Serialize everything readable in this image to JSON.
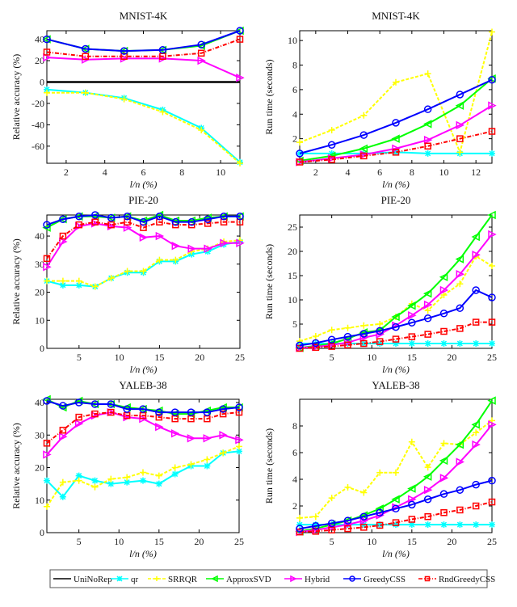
{
  "legend": {
    "entries": [
      "UniNoRep",
      "qr",
      "SRRQR",
      "ApproxSVD",
      "Hybrid",
      "GreedyCSS",
      "RndGreedyCSS"
    ],
    "placement": "bottom"
  },
  "styles": {
    "UniNoRep": {
      "color": "#000000",
      "marker": "none",
      "dash": "solid"
    },
    "qr": {
      "color": "#00ffff",
      "marker": "asterisk",
      "dash": "solid"
    },
    "SRRQR": {
      "color": "#ffff00",
      "marker": "plus",
      "dash": "dashed"
    },
    "ApproxSVD": {
      "color": "#00ff00",
      "marker": "triangle-left",
      "dash": "solid"
    },
    "Hybrid": {
      "color": "#ff00ff",
      "marker": "triangle-right",
      "dash": "solid"
    },
    "GreedyCSS": {
      "color": "#0000ff",
      "marker": "circle",
      "dash": "solid"
    },
    "RndGreedyCSS": {
      "color": "#ff0000",
      "marker": "square",
      "dash": "dash-dot"
    }
  },
  "chart_data": [
    {
      "type": "line",
      "title": "MNIST-4K",
      "xlabel": "l/n (%)",
      "ylabel": "Relative accuracy (%)",
      "xlim": [
        1,
        11
      ],
      "ylim": [
        -76,
        48
      ],
      "xticks": [
        2,
        4,
        6,
        8,
        10
      ],
      "yticks": [
        -60,
        -40,
        -20,
        0,
        20,
        40
      ],
      "grid": false,
      "x": [
        1,
        3,
        5,
        7,
        9,
        11
      ],
      "series": [
        {
          "name": "UniNoRep",
          "values": [
            0,
            0,
            0,
            0,
            0,
            0
          ]
        },
        {
          "name": "qr",
          "values": [
            -7,
            -10,
            -15,
            -26,
            -43,
            -75
          ]
        },
        {
          "name": "SRRQR",
          "values": [
            -10,
            -10,
            -16,
            -28,
            -45,
            -76
          ]
        },
        {
          "name": "ApproxSVD",
          "values": [
            40,
            31,
            29,
            30,
            34,
            48
          ]
        },
        {
          "name": "Hybrid",
          "values": [
            23,
            21,
            22,
            22,
            20,
            4
          ]
        },
        {
          "name": "GreedyCSS",
          "values": [
            40,
            31,
            29,
            30,
            35,
            48
          ]
        },
        {
          "name": "RndGreedyCSS",
          "values": [
            28,
            24,
            24,
            24,
            27,
            40
          ]
        }
      ]
    },
    {
      "type": "line",
      "title": "MNIST-4K",
      "xlabel": "l/n (%)",
      "ylabel": "Run time (seconds)",
      "xlim": [
        1,
        13
      ],
      "ylim": [
        0,
        10.8
      ],
      "xticks": [
        2,
        4,
        6,
        8,
        10,
        12
      ],
      "yticks": [
        2,
        4,
        6,
        8,
        10
      ],
      "grid": false,
      "x": [
        1,
        3,
        5,
        7,
        9,
        11,
        13
      ],
      "series": [
        {
          "name": "qr",
          "values": [
            0.8,
            0.8,
            0.8,
            0.9,
            0.8,
            0.8,
            0.8
          ]
        },
        {
          "name": "SRRQR",
          "values": [
            1.7,
            2.7,
            3.9,
            6.6,
            7.3,
            0.9,
            10.7
          ]
        },
        {
          "name": "ApproxSVD",
          "values": [
            0.2,
            0.6,
            1.2,
            2.0,
            3.2,
            4.7,
            6.9
          ]
        },
        {
          "name": "Hybrid",
          "values": [
            0.1,
            0.4,
            0.7,
            1.2,
            1.9,
            3.1,
            4.7
          ]
        },
        {
          "name": "GreedyCSS",
          "values": [
            0.8,
            1.5,
            2.3,
            3.3,
            4.4,
            5.6,
            6.8
          ]
        },
        {
          "name": "RndGreedyCSS",
          "values": [
            0.1,
            0.3,
            0.6,
            0.9,
            1.4,
            2.0,
            2.6
          ]
        }
      ]
    },
    {
      "type": "line",
      "title": "PIE-20",
      "xlabel": "l/n (%)",
      "ylabel": "Relative accuracy (%)",
      "xlim": [
        1,
        25
      ],
      "ylim": [
        0,
        47.5
      ],
      "xticks": [
        5,
        10,
        15,
        20,
        25
      ],
      "yticks": [
        0,
        10,
        20,
        30,
        40
      ],
      "grid": false,
      "x": [
        1,
        3,
        5,
        7,
        9,
        11,
        13,
        15,
        17,
        19,
        21,
        23,
        25
      ],
      "series": [
        {
          "name": "qr",
          "values": [
            24,
            22.5,
            22.5,
            22,
            25,
            27,
            27,
            31,
            31,
            33.5,
            34.5,
            37,
            38
          ]
        },
        {
          "name": "SRRQR",
          "values": [
            24,
            24,
            24,
            22,
            25,
            27.5,
            27.5,
            31.5,
            31.5,
            34.5,
            35.5,
            38,
            38.5
          ]
        },
        {
          "name": "ApproxSVD",
          "values": [
            43,
            46,
            47,
            47,
            46.5,
            47,
            45.5,
            47.5,
            45.5,
            45.5,
            46.5,
            47,
            47
          ]
        },
        {
          "name": "Hybrid",
          "values": [
            29,
            38,
            43.5,
            44.5,
            43.5,
            43,
            39.5,
            40,
            36.5,
            35.5,
            35.5,
            37.5,
            37.5
          ]
        },
        {
          "name": "GreedyCSS",
          "values": [
            44,
            46,
            47,
            47.5,
            46.5,
            47,
            45,
            47,
            45,
            45,
            46,
            47,
            47
          ]
        },
        {
          "name": "RndGreedyCSS",
          "values": [
            32,
            40,
            44,
            45,
            44,
            45,
            43,
            45,
            44,
            44,
            44.5,
            45,
            45
          ]
        }
      ]
    },
    {
      "type": "line",
      "title": "PIE-20",
      "xlabel": "l/n (%)",
      "ylabel": "Run time (seconds)",
      "xlim": [
        1,
        25
      ],
      "ylim": [
        0,
        27.5
      ],
      "xticks": [
        5,
        10,
        15,
        20,
        25
      ],
      "yticks": [
        5,
        10,
        15,
        20,
        25
      ],
      "grid": false,
      "x": [
        1,
        3,
        5,
        7,
        9,
        11,
        13,
        15,
        17,
        19,
        21,
        23,
        25
      ],
      "series": [
        {
          "name": "qr",
          "values": [
            1,
            1,
            1,
            1,
            1,
            1,
            1,
            1,
            1,
            1,
            1,
            1,
            1
          ]
        },
        {
          "name": "SRRQR",
          "values": [
            1.5,
            2.5,
            3.8,
            4.2,
            4.7,
            5.0,
            6.5,
            9.2,
            7.8,
            11,
            13.3,
            19,
            17
          ]
        },
        {
          "name": "ApproxSVD",
          "values": [
            0.1,
            0.5,
            1.0,
            2.0,
            3.3,
            3.7,
            6.5,
            8.8,
            11.3,
            14.7,
            18.4,
            23,
            27.5
          ]
        },
        {
          "name": "Hybrid",
          "values": [
            0.1,
            0.3,
            0.7,
            1.2,
            2.2,
            2.9,
            4.7,
            6.8,
            9.0,
            12,
            15.3,
            19.3,
            23.5
          ]
        },
        {
          "name": "GreedyCSS",
          "values": [
            0.6,
            1.1,
            1.8,
            2.4,
            3.0,
            3.6,
            4.4,
            5.3,
            6.2,
            7.2,
            8.3,
            12,
            10.5
          ]
        },
        {
          "name": "RndGreedyCSS",
          "values": [
            0,
            0.2,
            0.4,
            0.7,
            1.0,
            1.4,
            1.9,
            2.4,
            2.9,
            3.5,
            4.1,
            5.4,
            5.4
          ]
        }
      ]
    },
    {
      "type": "line",
      "title": "YALEB-38",
      "xlabel": "l/n (%)",
      "ylabel": "Relative accuracy (%)",
      "xlim": [
        1,
        25
      ],
      "ylim": [
        0,
        41
      ],
      "xticks": [
        5,
        10,
        15,
        20,
        25
      ],
      "yticks": [
        0,
        10,
        20,
        30,
        40
      ],
      "grid": false,
      "x": [
        1,
        3,
        5,
        7,
        9,
        11,
        13,
        15,
        17,
        19,
        21,
        23,
        25
      ],
      "series": [
        {
          "name": "qr",
          "values": [
            16,
            11,
            17.5,
            16,
            15,
            15.5,
            16,
            15,
            18,
            20.5,
            20.5,
            24.5,
            25
          ]
        },
        {
          "name": "SRRQR",
          "values": [
            8,
            15.5,
            16,
            14,
            16.5,
            17,
            18.5,
            17.5,
            20,
            21,
            22.5,
            24.5,
            26.5
          ]
        },
        {
          "name": "ApproxSVD",
          "values": [
            41,
            38.5,
            40.5,
            39.5,
            39.5,
            38.5,
            38,
            37.5,
            36.5,
            36.5,
            37.5,
            38.5,
            38.5
          ]
        },
        {
          "name": "Hybrid",
          "values": [
            24,
            29.5,
            33.5,
            36,
            37,
            35.5,
            35,
            32.5,
            30.5,
            29,
            29,
            30,
            28.5
          ]
        },
        {
          "name": "GreedyCSS",
          "values": [
            40.5,
            39,
            40,
            39.5,
            39.5,
            38,
            38,
            37,
            37,
            37,
            37,
            38,
            38.5
          ]
        },
        {
          "name": "RndGreedyCSS",
          "values": [
            27.5,
            31.5,
            35.5,
            36.5,
            37,
            36,
            36,
            35.5,
            35,
            35,
            35,
            36.5,
            37
          ]
        }
      ]
    },
    {
      "type": "line",
      "title": "YALEB-38",
      "xlabel": "l/n (%)",
      "ylabel": "Run time (seconds)",
      "xlim": [
        1,
        25
      ],
      "ylim": [
        0,
        10
      ],
      "xticks": [
        5,
        10,
        15,
        20,
        25
      ],
      "yticks": [
        2,
        4,
        6,
        8
      ],
      "grid": false,
      "x": [
        1,
        3,
        5,
        7,
        9,
        11,
        13,
        15,
        17,
        19,
        21,
        23,
        25
      ],
      "series": [
        {
          "name": "qr",
          "values": [
            0.6,
            0.6,
            0.6,
            0.6,
            0.6,
            0.6,
            0.6,
            0.6,
            0.6,
            0.6,
            0.6,
            0.6,
            0.6
          ]
        },
        {
          "name": "SRRQR",
          "values": [
            1.1,
            1.2,
            2.6,
            3.4,
            3.0,
            4.5,
            4.5,
            6.8,
            4.9,
            6.7,
            6.6,
            7.5,
            8.4
          ]
        },
        {
          "name": "ApproxSVD",
          "values": [
            0.1,
            0.3,
            0.6,
            0.9,
            1.3,
            1.8,
            2.5,
            3.3,
            4.2,
            5.4,
            6.6,
            8.1,
            9.9
          ]
        },
        {
          "name": "Hybrid",
          "values": [
            0.05,
            0.2,
            0.4,
            0.6,
            0.9,
            1.3,
            1.9,
            2.5,
            3.2,
            4.1,
            5.3,
            6.6,
            8.1
          ]
        },
        {
          "name": "GreedyCSS",
          "values": [
            0.3,
            0.5,
            0.7,
            0.9,
            1.2,
            1.5,
            1.8,
            2.1,
            2.5,
            2.9,
            3.2,
            3.6,
            3.9
          ]
        },
        {
          "name": "RndGreedyCSS",
          "values": [
            0.05,
            0.1,
            0.2,
            0.3,
            0.4,
            0.55,
            0.75,
            1.0,
            1.2,
            1.5,
            1.7,
            2.0,
            2.3
          ]
        }
      ]
    }
  ]
}
